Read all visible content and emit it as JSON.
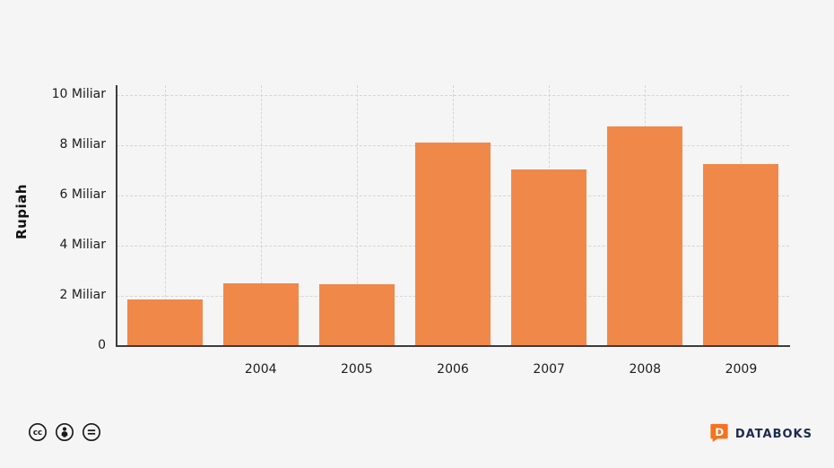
{
  "chart_data": {
    "type": "bar",
    "categories": [
      "",
      "2004",
      "2005",
      "2006",
      "2007",
      "2008",
      "2009"
    ],
    "values": [
      1.85,
      2.5,
      2.45,
      8.1,
      7.05,
      8.75,
      7.25
    ],
    "title": "",
    "xlabel": "",
    "ylabel": "Rupiah",
    "ylim": [
      0,
      10
    ],
    "ytick_step": 2,
    "ytick_labels": [
      "0",
      "2 Miliar",
      "4 Miliar",
      "6 Miliar",
      "8 Miliar",
      "10 Miliar"
    ],
    "bar_color": "#f0884a",
    "grid": true,
    "grid_style": "dashed",
    "legend": "none"
  },
  "footer": {
    "brand": "DATABOKS",
    "license_icons": [
      "cc-icon",
      "attribution-icon",
      "equal-icon"
    ]
  },
  "colors": {
    "background": "#f5f5f5",
    "bar": "#f0884a",
    "axis": "#3c3c3c",
    "grid": "#d7d5d2",
    "brand_text": "#1b2b4d",
    "brand_logo": "#f4731f"
  }
}
